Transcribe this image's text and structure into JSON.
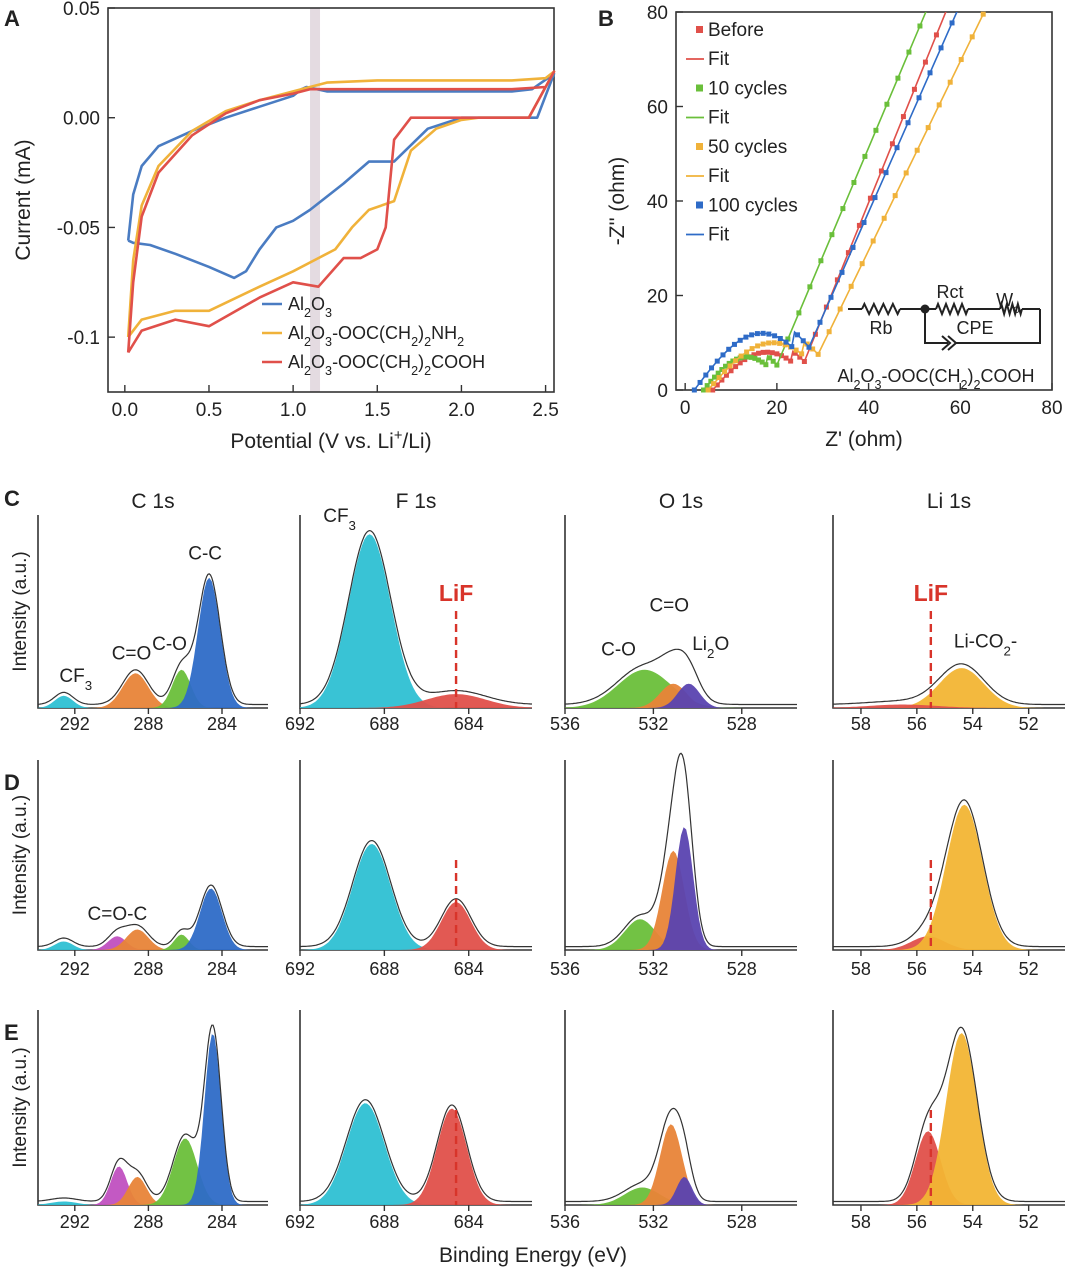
{
  "colors": {
    "blue": "#4a7cc2",
    "yellow": "#f0b23a",
    "red": "#e0504a",
    "green": "#6abf3a",
    "cyan": "#2ec0d3",
    "orange": "#e88438",
    "purple": "#5a43b0",
    "magenta": "#c050c0",
    "darkblue": "#2e6bc7",
    "gold": "#f2b534",
    "lif": "#d8342a"
  },
  "panel_letters": [
    "A",
    "B",
    "C",
    "D",
    "E"
  ],
  "xps_titles": [
    "C 1s",
    "F 1s",
    "O 1s",
    "Li 1s"
  ],
  "shared_xlabel": "Binding Energy (eV)",
  "chart_data": [
    {
      "id": "A",
      "type": "line",
      "xlabel": "Potential (V vs. Li+/Li)",
      "ylabel": "Current (mA)",
      "xlim": [
        -0.1,
        2.55
      ],
      "ylim": [
        -0.125,
        0.05
      ],
      "xticks": [
        "0.0",
        "0.5",
        "1.0",
        "1.5",
        "2.0",
        "2.5"
      ],
      "yticks": [
        "0.05",
        "0.00",
        "-0.05",
        "-0.1"
      ],
      "legend_position": "bottom-right",
      "highlight_band_x": 1.13,
      "series": [
        {
          "name": "Al2O3",
          "color": "blue",
          "x": [
            0.02,
            0.05,
            0.1,
            0.2,
            0.4,
            0.6,
            0.8,
            1.0,
            1.05,
            1.08,
            1.2,
            1.6,
            2.0,
            2.3,
            2.42,
            2.55,
            2.45,
            2.2,
            2.0,
            1.8,
            1.6,
            1.45,
            1.3,
            1.1,
            1.0,
            0.9,
            0.8,
            0.72,
            0.65,
            0.5,
            0.3,
            0.15,
            0.05,
            0.02
          ],
          "y": [
            -0.056,
            -0.035,
            -0.022,
            -0.013,
            -0.006,
            0.0,
            0.005,
            0.01,
            0.013,
            0.014,
            0.012,
            0.012,
            0.012,
            0.012,
            0.013,
            0.02,
            0.0,
            0.0,
            0.0,
            -0.005,
            -0.02,
            -0.02,
            -0.03,
            -0.042,
            -0.047,
            -0.05,
            -0.06,
            -0.07,
            -0.073,
            -0.068,
            -0.062,
            -0.058,
            -0.057,
            -0.056
          ]
        },
        {
          "name": "Al2O3-OOC(CH2)2NH2",
          "color": "yellow",
          "x": [
            0.02,
            0.05,
            0.1,
            0.2,
            0.4,
            0.6,
            0.8,
            1.0,
            1.2,
            1.5,
            1.8,
            2.0,
            2.3,
            2.5,
            2.55,
            2.4,
            2.2,
            2.1,
            2.0,
            1.85,
            1.7,
            1.6,
            1.45,
            1.35,
            1.25,
            1.15,
            1.0,
            0.8,
            0.5,
            0.3,
            0.1,
            0.02
          ],
          "y": [
            -0.1,
            -0.065,
            -0.04,
            -0.022,
            -0.006,
            0.003,
            0.008,
            0.012,
            0.016,
            0.017,
            0.017,
            0.017,
            0.017,
            0.018,
            0.021,
            0.0,
            0.0,
            0.0,
            -0.001,
            -0.005,
            -0.015,
            -0.038,
            -0.042,
            -0.05,
            -0.06,
            -0.064,
            -0.07,
            -0.077,
            -0.088,
            -0.088,
            -0.092,
            -0.1
          ]
        },
        {
          "name": "Al2O3-OOC(CH2)2COOH",
          "color": "red",
          "x": [
            0.02,
            0.05,
            0.1,
            0.2,
            0.4,
            0.6,
            0.8,
            1.0,
            1.1,
            1.3,
            1.6,
            2.0,
            2.3,
            2.5,
            2.55,
            2.4,
            2.2,
            2.0,
            1.9,
            1.8,
            1.7,
            1.6,
            1.55,
            1.5,
            1.4,
            1.3,
            1.15,
            1.0,
            0.8,
            0.5,
            0.3,
            0.1,
            0.02
          ],
          "y": [
            -0.107,
            -0.075,
            -0.045,
            -0.025,
            -0.008,
            0.002,
            0.008,
            0.011,
            0.013,
            0.013,
            0.013,
            0.013,
            0.013,
            0.014,
            0.021,
            0.0,
            0.0,
            0.0,
            0.0,
            0.0,
            0.0,
            -0.01,
            -0.05,
            -0.06,
            -0.064,
            -0.064,
            -0.077,
            -0.075,
            -0.082,
            -0.095,
            -0.092,
            -0.097,
            -0.107
          ]
        }
      ]
    },
    {
      "id": "B",
      "type": "scatter",
      "xlabel": "Z' (ohm)",
      "ylabel": "-Z'' (ohm)",
      "xlim": [
        -2,
        80
      ],
      "ylim": [
        0,
        80
      ],
      "xticks": [
        "0",
        "20",
        "40",
        "60",
        "80"
      ],
      "yticks": [
        "0",
        "20",
        "40",
        "60",
        "80"
      ],
      "legend_position": "top-left",
      "fit_label": "Fit",
      "annotation": "Al2O3-OOC(CH2)2COOH",
      "circuit_labels": {
        "rb": "Rb",
        "rct": "Rct",
        "cpe": "CPE",
        "wo": "Wo"
      },
      "series": [
        {
          "name": "Before",
          "color": "red",
          "x0": 6,
          "arc_end": 26,
          "arc_h": 8,
          "slope": 2.4
        },
        {
          "name": "10 cycles",
          "color": "green",
          "x0": 4,
          "arc_end": 20,
          "arc_h": 7,
          "slope": 2.3
        },
        {
          "name": "50 cycles",
          "color": "yellow",
          "x0": 5,
          "arc_end": 29,
          "arc_h": 10,
          "slope": 2.0
        },
        {
          "name": "100 cycles",
          "color": "darkblue",
          "x0": 2,
          "arc_end": 27,
          "arc_h": 12,
          "slope": 2.2
        }
      ]
    },
    {
      "id": "C",
      "type": "area",
      "row_label": "C",
      "ylabel": "Intensity (a.u.)",
      "subplots": [
        {
          "title": "C 1s",
          "xlim": [
            294,
            281.5
          ],
          "xticks": [
            "292",
            "288",
            "284"
          ],
          "lif_line": null,
          "peaks": [
            {
              "center": 292.6,
              "height": 0.07,
              "width": 0.5,
              "color": "cyan",
              "label": "CF3"
            },
            {
              "center": 288.7,
              "height": 0.2,
              "width": 0.7,
              "color": "orange",
              "label": "C=O"
            },
            {
              "center": 286.2,
              "height": 0.22,
              "width": 0.5,
              "color": "green",
              "label": "C-O"
            },
            {
              "center": 284.7,
              "height": 0.75,
              "width": 0.6,
              "color": "darkblue",
              "label": "C-C"
            }
          ]
        },
        {
          "title": "F 1s",
          "xlim": [
            692,
            681
          ],
          "xticks": [
            "692",
            "688",
            "684"
          ],
          "lif_line": 684.6,
          "lif_label": "LiF",
          "peaks": [
            {
              "center": 688.7,
              "height": 1.0,
              "width": 1.0,
              "color": "cyan",
              "label": "CF3"
            },
            {
              "center": 684.6,
              "height": 0.08,
              "width": 1.4,
              "color": "red",
              "label": ""
            }
          ]
        },
        {
          "title": "O 1s",
          "xlim": [
            536,
            525.5
          ],
          "xticks": [
            "536",
            "532",
            "528"
          ],
          "lif_line": null,
          "peaks": [
            {
              "center": 532.4,
              "height": 0.22,
              "width": 1.2,
              "color": "green",
              "label": "C-O"
            },
            {
              "center": 531.1,
              "height": 0.14,
              "width": 0.6,
              "color": "orange",
              "label": "C=O"
            },
            {
              "center": 530.4,
              "height": 0.14,
              "width": 0.5,
              "color": "purple",
              "label": "Li2O"
            }
          ]
        },
        {
          "title": "Li 1s",
          "xlim": [
            59,
            50.7
          ],
          "xticks": [
            "58",
            "56",
            "54",
            "52"
          ],
          "lif_line": 55.5,
          "lif_label": "LiF",
          "peaks": [
            {
              "center": 54.4,
              "height": 0.23,
              "width": 0.8,
              "color": "gold",
              "label": "Li-CO2-"
            },
            {
              "center": 56.5,
              "height": 0.02,
              "width": 1.2,
              "color": "red",
              "label": ""
            }
          ]
        }
      ]
    },
    {
      "id": "D",
      "type": "area",
      "row_label": "D",
      "ylabel": "Intensity (a.u.)",
      "subplots": [
        {
          "title": "C 1s",
          "xlim": [
            294,
            281.5
          ],
          "xticks": [
            "292",
            "288",
            "284"
          ],
          "lif_line": null,
          "note": "C=O-C",
          "peaks": [
            {
              "center": 292.6,
              "height": 0.05,
              "width": 0.5,
              "color": "cyan",
              "label": ""
            },
            {
              "center": 289.7,
              "height": 0.08,
              "width": 0.5,
              "color": "magenta",
              "label": ""
            },
            {
              "center": 288.6,
              "height": 0.12,
              "width": 0.6,
              "color": "orange",
              "label": ""
            },
            {
              "center": 286.2,
              "height": 0.09,
              "width": 0.4,
              "color": "green",
              "label": ""
            },
            {
              "center": 284.6,
              "height": 0.36,
              "width": 0.6,
              "color": "darkblue",
              "label": ""
            }
          ]
        },
        {
          "title": "F 1s",
          "xlim": [
            692,
            681
          ],
          "xticks": [
            "692",
            "688",
            "684"
          ],
          "lif_line": 684.6,
          "peaks": [
            {
              "center": 688.6,
              "height": 0.62,
              "width": 0.9,
              "color": "cyan",
              "label": ""
            },
            {
              "center": 684.6,
              "height": 0.28,
              "width": 0.7,
              "color": "red",
              "label": ""
            }
          ]
        },
        {
          "title": "O 1s",
          "xlim": [
            536,
            525.5
          ],
          "xticks": [
            "536",
            "532",
            "528"
          ],
          "lif_line": null,
          "peaks": [
            {
              "center": 532.6,
              "height": 0.18,
              "width": 0.7,
              "color": "green",
              "label": ""
            },
            {
              "center": 531.1,
              "height": 0.58,
              "width": 0.5,
              "color": "orange",
              "label": ""
            },
            {
              "center": 530.6,
              "height": 0.72,
              "width": 0.4,
              "color": "purple",
              "label": ""
            }
          ]
        },
        {
          "title": "Li 1s",
          "xlim": [
            59,
            50.7
          ],
          "xticks": [
            "58",
            "56",
            "54",
            "52"
          ],
          "lif_line": 55.5,
          "peaks": [
            {
              "center": 55.6,
              "height": 0.08,
              "width": 0.6,
              "color": "red",
              "label": ""
            },
            {
              "center": 54.3,
              "height": 0.85,
              "width": 0.65,
              "color": "gold",
              "label": ""
            }
          ]
        }
      ]
    },
    {
      "id": "E",
      "type": "area",
      "row_label": "E",
      "ylabel": "Intensity (a.u.)",
      "xlabel": "Binding Energy (eV)",
      "subplots": [
        {
          "title": "C 1s",
          "xlim": [
            294,
            281.5
          ],
          "xticks": [
            "292",
            "288",
            "284"
          ],
          "lif_line": null,
          "peaks": [
            {
              "center": 292.6,
              "height": 0.02,
              "width": 0.7,
              "color": "cyan",
              "label": ""
            },
            {
              "center": 289.6,
              "height": 0.22,
              "width": 0.45,
              "color": "magenta",
              "label": ""
            },
            {
              "center": 288.6,
              "height": 0.16,
              "width": 0.5,
              "color": "orange",
              "label": ""
            },
            {
              "center": 286.0,
              "height": 0.38,
              "width": 0.65,
              "color": "green",
              "label": ""
            },
            {
              "center": 284.5,
              "height": 0.98,
              "width": 0.45,
              "color": "darkblue",
              "label": ""
            }
          ]
        },
        {
          "title": "F 1s",
          "xlim": [
            692,
            681
          ],
          "xticks": [
            "692",
            "688",
            "684"
          ],
          "lif_line": 684.6,
          "peaks": [
            {
              "center": 688.9,
              "height": 0.58,
              "width": 0.9,
              "color": "cyan",
              "label": ""
            },
            {
              "center": 684.8,
              "height": 0.55,
              "width": 0.7,
              "color": "red",
              "label": ""
            }
          ]
        },
        {
          "title": "O 1s",
          "xlim": [
            536,
            525.5
          ],
          "xticks": [
            "536",
            "532",
            "528"
          ],
          "lif_line": null,
          "peaks": [
            {
              "center": 532.5,
              "height": 0.1,
              "width": 0.8,
              "color": "green",
              "label": ""
            },
            {
              "center": 531.2,
              "height": 0.46,
              "width": 0.5,
              "color": "orange",
              "label": ""
            },
            {
              "center": 530.6,
              "height": 0.16,
              "width": 0.35,
              "color": "purple",
              "label": ""
            }
          ]
        },
        {
          "title": "Li 1s",
          "xlim": [
            59,
            50.7
          ],
          "xticks": [
            "58",
            "56",
            "54",
            "52"
          ],
          "lif_line": 55.5,
          "peaks": [
            {
              "center": 55.6,
              "height": 0.42,
              "width": 0.45,
              "color": "red",
              "label": ""
            },
            {
              "center": 54.4,
              "height": 0.98,
              "width": 0.55,
              "color": "gold",
              "label": ""
            }
          ]
        }
      ]
    }
  ]
}
